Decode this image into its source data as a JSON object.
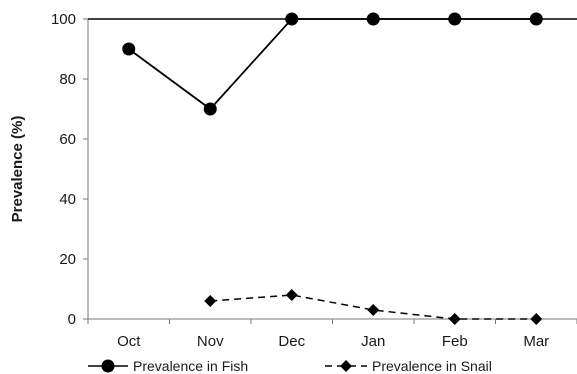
{
  "chart_data": {
    "type": "line",
    "categories": [
      "Oct",
      "Nov",
      "Dec",
      "Jan",
      "Feb",
      "Mar"
    ],
    "series": [
      {
        "name": "Prevalence in Fish",
        "values": [
          90,
          70,
          100,
          100,
          100,
          100
        ],
        "marker": "circle",
        "line_style": "solid",
        "color": "#000000"
      },
      {
        "name": "Prevalence in Snail",
        "values": [
          null,
          6,
          8,
          3,
          0,
          0
        ],
        "marker": "diamond",
        "line_style": "dashed",
        "color": "#000000"
      }
    ],
    "ylabel": "Prevalence (%)",
    "xlabel": "",
    "ylim": [
      0,
      100
    ],
    "yticks": [
      0,
      20,
      40,
      60,
      80,
      100
    ],
    "grid": false,
    "legend_position": "bottom"
  }
}
